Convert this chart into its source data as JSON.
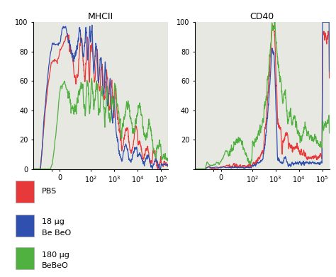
{
  "title_left": "MHCII",
  "title_right": "CD40",
  "colors": {
    "red": "#e8393a",
    "blue": "#3050b0",
    "green": "#50b040"
  },
  "bg_color": "#ffffff",
  "plot_bg": "#e8e8e2",
  "ylim": [
    0,
    100
  ],
  "yticks": [
    0,
    20,
    40,
    60,
    80,
    100
  ],
  "legend_items": [
    {
      "label1": "PBS",
      "label2": "",
      "color": "#e8393a"
    },
    {
      "label1": "18 μg",
      "label2": "Be BeO",
      "color": "#3050b0"
    },
    {
      "label1": "180 μg",
      "label2": "BeBeO",
      "color": "#50b040"
    }
  ]
}
